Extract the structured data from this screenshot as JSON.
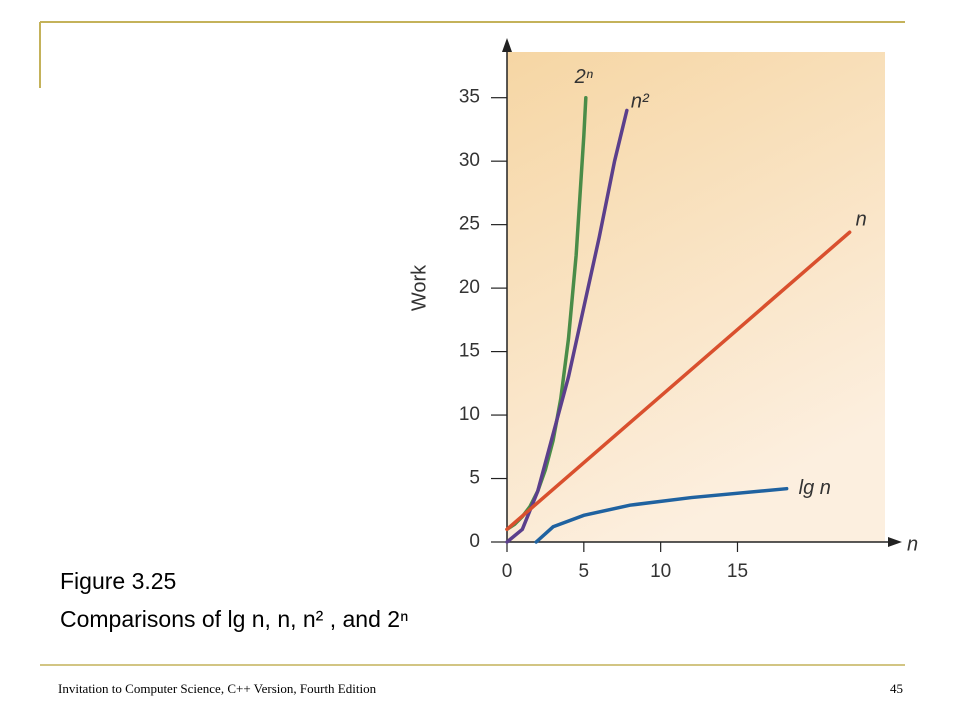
{
  "chart_data": {
    "type": "line",
    "y_label": "Work",
    "x_label": "n",
    "xlim": [
      0,
      24.6
    ],
    "ylim": [
      0,
      38.6
    ],
    "xticks": [
      0,
      5,
      10,
      15
    ],
    "yticks": [
      0,
      5,
      10,
      15,
      20,
      25,
      30,
      35
    ],
    "series": [
      {
        "name": "2ⁿ",
        "color": "#4a8c48",
        "x": [
          0,
          0.5,
          1,
          1.5,
          2,
          2.5,
          3,
          3.5,
          4,
          4.5,
          5,
          5.13
        ],
        "values": [
          1,
          1.4,
          2,
          2.8,
          4,
          5.7,
          8,
          11.3,
          16,
          22.6,
          32,
          35
        ]
      },
      {
        "name": "n²",
        "color": "#5b3f8c",
        "x": [
          0,
          1,
          2,
          3,
          4,
          5,
          6,
          7,
          7.8
        ],
        "values": [
          0,
          1,
          4,
          8.5,
          13,
          18.5,
          24,
          30,
          34
        ]
      },
      {
        "name": "n",
        "color": "#d9502e",
        "x": [
          0,
          22.3
        ],
        "values": [
          1,
          24.4
        ]
      },
      {
        "name": "lg n",
        "color": "#1f62a0",
        "x": [
          1.9,
          3,
          5,
          8,
          12,
          18.2
        ],
        "values": [
          0,
          1.2,
          2.1,
          2.9,
          3.5,
          4.2
        ]
      }
    ]
  },
  "caption": {
    "line1": "Figure 3.25",
    "line2": "Comparisons of lg n, n, n² , and 2ⁿ"
  },
  "footer": {
    "book": "Invitation to Computer Science, C++ Version, Fourth Edition",
    "page": "45"
  }
}
